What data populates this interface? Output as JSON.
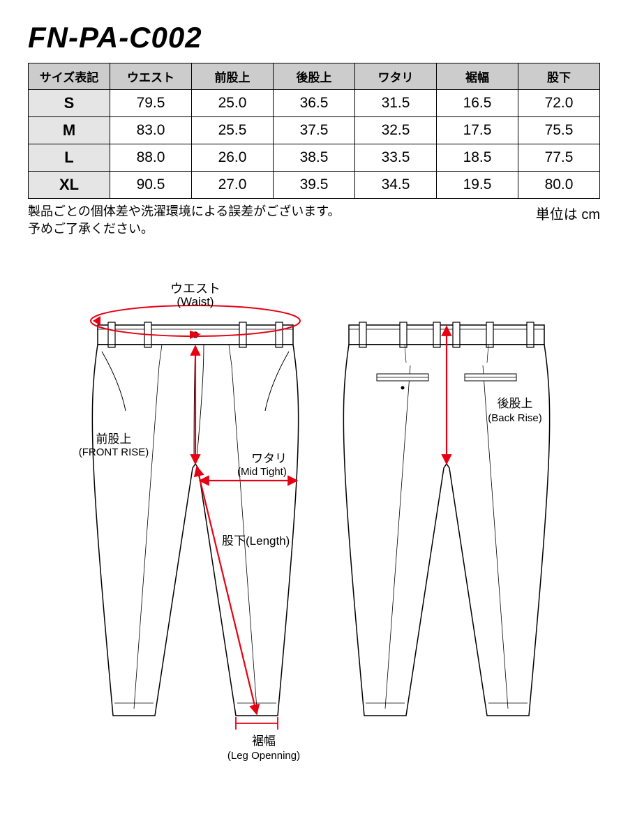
{
  "product_code": "FN-PA-C002",
  "table": {
    "header_bg": "#cccccc",
    "size_col_bg": "#e5e5e5",
    "border_color": "#000000",
    "columns": [
      "サイズ表記",
      "ウエスト",
      "前股上",
      "後股上",
      "ワタリ",
      "裾幅",
      "股下"
    ],
    "rows": [
      {
        "size": "S",
        "vals": [
          "79.5",
          "25.0",
          "36.5",
          "31.5",
          "16.5",
          "72.0"
        ]
      },
      {
        "size": "M",
        "vals": [
          "83.0",
          "25.5",
          "37.5",
          "32.5",
          "17.5",
          "75.5"
        ]
      },
      {
        "size": "L",
        "vals": [
          "88.0",
          "26.0",
          "38.5",
          "33.5",
          "18.5",
          "77.5"
        ]
      },
      {
        "size": "XL",
        "vals": [
          "90.5",
          "27.0",
          "39.5",
          "34.5",
          "19.5",
          "80.0"
        ]
      }
    ]
  },
  "notes": {
    "line1": "製品ごとの個体差や洗濯環境による誤差がございます。",
    "line2": "予めご了承ください。",
    "unit": "単位は cm"
  },
  "diagram": {
    "arrow_color": "#e60012",
    "line_color": "#000000",
    "labels": {
      "waist_jp": "ウエスト",
      "waist_en": "(Waist)",
      "front_rise_jp": "前股上",
      "front_rise_en": "(FRONT RISE)",
      "mid_thigh_jp": "ワタリ",
      "mid_thigh_en": "(Mid Tight)",
      "length_jp": "股下",
      "length_en": "(Length)",
      "leg_opening_jp": "裾幅",
      "leg_opening_en": "(Leg Openning)",
      "back_rise_jp": "後股上",
      "back_rise_en": "(Back Rise)"
    }
  }
}
